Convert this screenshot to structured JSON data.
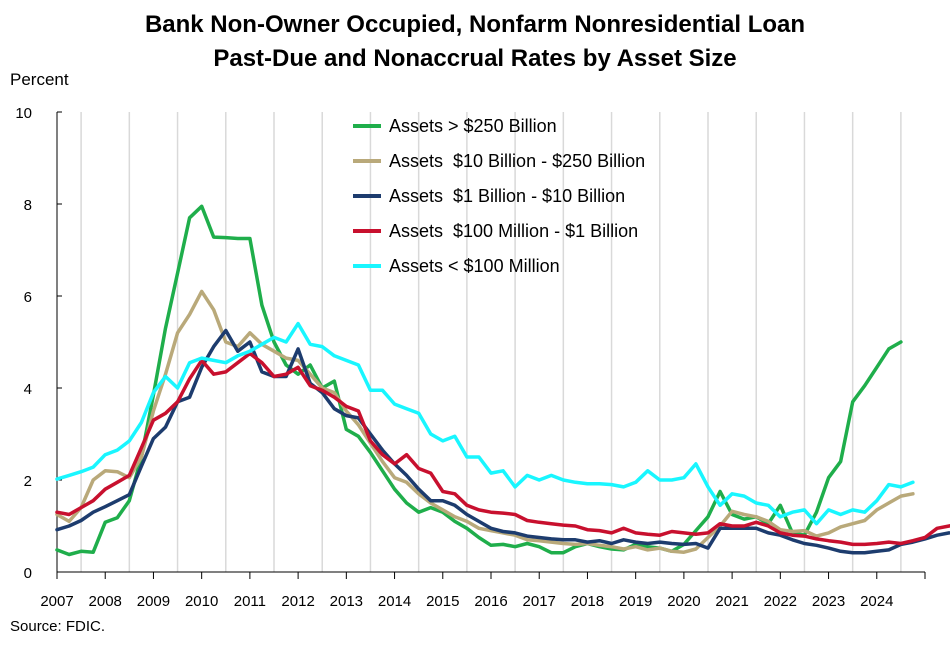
{
  "title_lines": [
    "Bank Non-Owner Occupied, Nonfarm Nonresidential Loan",
    "Past-Due and Nonaccrual Rates by Asset Size"
  ],
  "y_unit": "Percent",
  "source": "Source: FDIC.",
  "chart_data": {
    "type": "line",
    "title": "Bank Non-Owner Occupied, Nonfarm Nonresidential Loan Past-Due and Nonaccrual Rates by Asset Size",
    "ylabel": "Percent",
    "xlabel": "",
    "ylim": [
      0,
      10
    ],
    "yticks": [
      0,
      2,
      4,
      6,
      8,
      10
    ],
    "xlim": [
      2007,
      2025
    ],
    "xticks": [
      2007,
      2008,
      2009,
      2010,
      2011,
      2012,
      2013,
      2014,
      2015,
      2016,
      2017,
      2018,
      2019,
      2020,
      2021,
      2022,
      2023,
      2024
    ],
    "grid": "vertical",
    "legend_position": "top-center",
    "x_start": 2007.0,
    "x_step": 0.25,
    "series": [
      {
        "name": "Assets > $250 Billion",
        "color": "#1fae4b",
        "values": [
          0.48,
          0.38,
          0.45,
          0.43,
          1.08,
          1.18,
          1.55,
          2.5,
          3.85,
          5.3,
          6.5,
          7.7,
          7.95,
          7.28,
          7.27,
          7.25,
          7.25,
          5.8,
          5.0,
          4.5,
          4.3,
          4.5,
          4.0,
          4.15,
          3.1,
          2.95,
          2.6,
          2.2,
          1.8,
          1.5,
          1.3,
          1.4,
          1.3,
          1.1,
          0.95,
          0.75,
          0.58,
          0.6,
          0.55,
          0.62,
          0.55,
          0.42,
          0.42,
          0.55,
          0.62,
          0.55,
          0.5,
          0.48,
          0.6,
          0.55,
          0.52,
          0.45,
          0.6,
          0.9,
          1.2,
          1.75,
          1.25,
          1.15,
          1.2,
          1.05,
          1.45,
          0.85,
          0.8,
          1.3,
          2.05,
          2.4,
          3.7,
          4.05,
          4.45,
          4.85,
          5.0
        ]
      },
      {
        "name": "Assets  $10 Billion - $250 Billion",
        "color": "#b9a97a",
        "values": [
          1.25,
          1.1,
          1.4,
          2.0,
          2.2,
          2.18,
          2.05,
          2.5,
          3.5,
          4.3,
          5.2,
          5.6,
          6.1,
          5.7,
          5.0,
          4.9,
          5.2,
          4.95,
          4.8,
          4.65,
          4.6,
          4.3,
          4.0,
          3.9,
          3.5,
          3.2,
          2.8,
          2.4,
          2.05,
          1.95,
          1.7,
          1.5,
          1.35,
          1.2,
          1.1,
          0.95,
          0.9,
          0.85,
          0.8,
          0.7,
          0.68,
          0.65,
          0.62,
          0.6,
          0.62,
          0.58,
          0.55,
          0.5,
          0.55,
          0.48,
          0.52,
          0.45,
          0.43,
          0.5,
          0.75,
          1.0,
          1.32,
          1.25,
          1.2,
          1.1,
          0.92,
          0.88,
          0.9,
          0.78,
          0.85,
          0.98,
          1.05,
          1.12,
          1.35,
          1.5,
          1.65,
          1.7
        ]
      },
      {
        "name": "Assets  $1 Billion - $10 Billion",
        "color": "#1d3c6e",
        "values": [
          0.92,
          1.0,
          1.12,
          1.3,
          1.42,
          1.55,
          1.68,
          2.3,
          2.9,
          3.15,
          3.7,
          3.8,
          4.45,
          4.9,
          5.25,
          4.8,
          5.0,
          4.35,
          4.25,
          4.25,
          4.85,
          4.1,
          3.9,
          3.55,
          3.4,
          3.35,
          3.0,
          2.65,
          2.35,
          2.1,
          1.8,
          1.55,
          1.55,
          1.45,
          1.25,
          1.1,
          0.95,
          0.88,
          0.85,
          0.78,
          0.75,
          0.72,
          0.7,
          0.7,
          0.65,
          0.68,
          0.62,
          0.7,
          0.65,
          0.62,
          0.65,
          0.62,
          0.6,
          0.62,
          0.52,
          0.95,
          0.95,
          0.95,
          0.95,
          0.85,
          0.8,
          0.7,
          0.62,
          0.58,
          0.52,
          0.45,
          0.42,
          0.42,
          0.45,
          0.48,
          0.6,
          0.65,
          0.72,
          0.8,
          0.85
        ]
      },
      {
        "name": "Assets  $100 Million - $1 Billion",
        "color": "#c8102e",
        "values": [
          1.3,
          1.25,
          1.4,
          1.55,
          1.8,
          1.95,
          2.1,
          2.7,
          3.3,
          3.45,
          3.7,
          4.2,
          4.6,
          4.3,
          4.35,
          4.55,
          4.75,
          4.55,
          4.25,
          4.3,
          4.45,
          4.05,
          3.95,
          3.8,
          3.6,
          3.5,
          2.85,
          2.55,
          2.35,
          2.55,
          2.25,
          2.15,
          1.75,
          1.7,
          1.45,
          1.35,
          1.3,
          1.28,
          1.25,
          1.12,
          1.08,
          1.05,
          1.02,
          1.0,
          0.92,
          0.9,
          0.85,
          0.95,
          0.85,
          0.82,
          0.8,
          0.88,
          0.85,
          0.82,
          0.85,
          1.05,
          1.0,
          1.0,
          1.08,
          1.0,
          0.85,
          0.8,
          0.78,
          0.72,
          0.68,
          0.65,
          0.6,
          0.6,
          0.62,
          0.65,
          0.62,
          0.68,
          0.75,
          0.95,
          1.0,
          1.05
        ]
      },
      {
        "name": "Assets < $100 Million",
        "color": "#19f6ff",
        "values": [
          2.02,
          2.1,
          2.18,
          2.28,
          2.55,
          2.65,
          2.85,
          3.25,
          3.9,
          4.25,
          4.0,
          4.55,
          4.65,
          4.6,
          4.55,
          4.7,
          4.8,
          4.95,
          5.1,
          5.0,
          5.4,
          4.95,
          4.9,
          4.7,
          4.6,
          4.5,
          3.95,
          3.95,
          3.65,
          3.55,
          3.45,
          3.0,
          2.85,
          2.95,
          2.5,
          2.5,
          2.15,
          2.2,
          1.85,
          2.1,
          2.0,
          2.1,
          2.0,
          1.95,
          1.92,
          1.92,
          1.9,
          1.85,
          1.95,
          2.2,
          2.0,
          2.0,
          2.05,
          2.35,
          1.85,
          1.45,
          1.7,
          1.65,
          1.5,
          1.45,
          1.2,
          1.3,
          1.35,
          1.05,
          1.35,
          1.25,
          1.35,
          1.3,
          1.55,
          1.9,
          1.85,
          1.95
        ]
      }
    ]
  }
}
